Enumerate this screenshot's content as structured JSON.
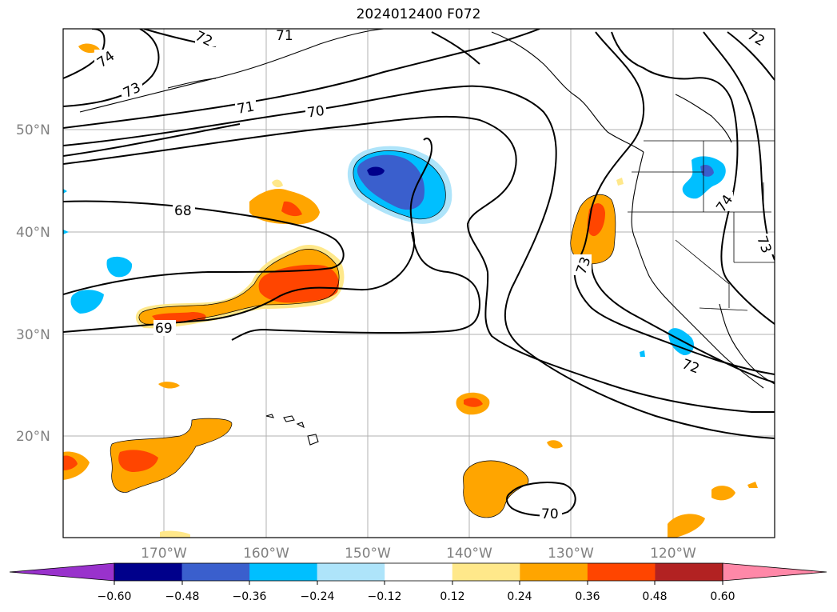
{
  "title": "2024012400 F072",
  "map": {
    "lat_labels": [
      "50°N",
      "40°N",
      "30°N",
      "20°N"
    ],
    "lon_labels": [
      "170°W",
      "160°W",
      "150°W",
      "140°W",
      "130°W",
      "120°W"
    ],
    "contour_labels": [
      "74",
      "73",
      "72",
      "71",
      "71",
      "70",
      "68",
      "69",
      "73",
      "74",
      "72",
      "73",
      "70",
      "72"
    ]
  },
  "colorbar": {
    "tick_labels": [
      "−0.60",
      "−0.48",
      "−0.36",
      "−0.24",
      "−0.12",
      "0.12",
      "0.24",
      "0.36",
      "0.48",
      "0.60"
    ],
    "colors": [
      "#9932cc",
      "#00008b",
      "#3a5fcd",
      "#00bfff",
      "#aee4fa",
      "#ffffff",
      "#ffe88a",
      "#ffa500",
      "#ff4500",
      "#b22222",
      "#ff88a8"
    ]
  }
}
